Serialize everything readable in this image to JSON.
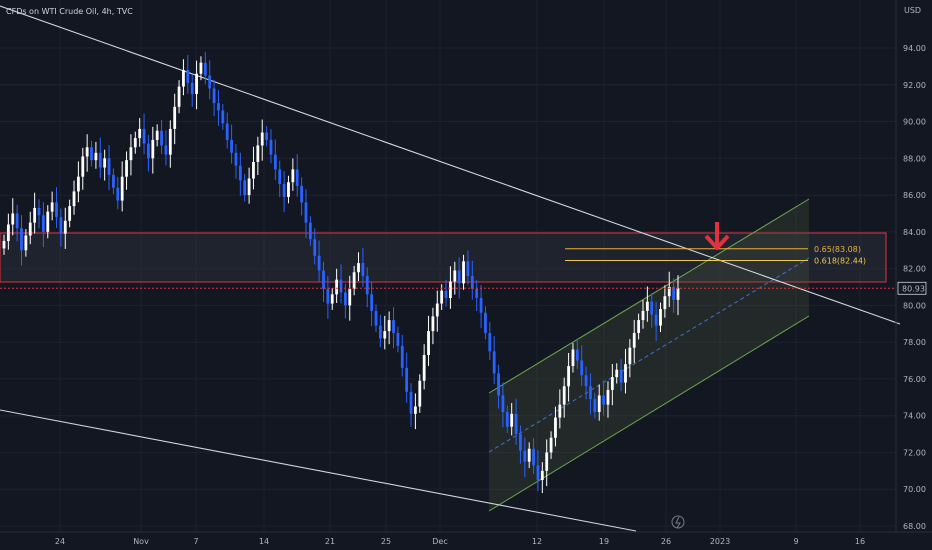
{
  "header": {
    "title": "CFDs on WTI Crude Oil, 4h, TVC"
  },
  "chart_data": {
    "type": "candlestick",
    "title": "CFDs on WTI Crude Oil, 4h, TVC",
    "currency": "USD",
    "ylim": [
      67.5,
      95.5
    ],
    "y_ticks": [
      "94.00",
      "92.00",
      "90.00",
      "88.00",
      "86.00",
      "84.00",
      "82.00",
      "80.00",
      "78.00",
      "76.00",
      "74.00",
      "72.00",
      "70.00",
      "68.00"
    ],
    "x_ticks": [
      "24",
      "Nov",
      "7",
      "14",
      "21",
      "25",
      "Dec",
      "12",
      "19",
      "26",
      "2023",
      "9",
      "16"
    ],
    "last_price": "80.93",
    "fib_levels": [
      {
        "label": "0.65(83.08)",
        "value": 83.08,
        "color": "#e8b03e"
      },
      {
        "label": "0.618(82.44)",
        "value": 82.44,
        "color": "#f0c850"
      }
    ],
    "resistance_zone": {
      "from": 81.3,
      "to": 83.9
    },
    "closes": [
      83.5,
      84.4,
      85.0,
      84.2,
      83.0,
      83.8,
      84.5,
      85.3,
      84.9,
      84.0,
      85.1,
      85.6,
      84.8,
      83.9,
      84.6,
      85.4,
      86.2,
      87.0,
      88.1,
      88.6,
      87.9,
      88.3,
      87.5,
      88.0,
      87.1,
      86.4,
      85.7,
      87.0,
      87.9,
      88.6,
      89.1,
      89.6,
      88.8,
      88.0,
      89.0,
      89.5,
      88.7,
      88.2,
      89.6,
      90.8,
      91.9,
      92.8,
      92.1,
      91.5,
      92.6,
      93.2,
      92.5,
      91.8,
      91.0,
      90.6,
      89.9,
      89.0,
      88.3,
      87.6,
      86.8,
      86.0,
      86.9,
      87.8,
      88.7,
      89.4,
      89.0,
      88.2,
      87.4,
      86.6,
      85.9,
      86.7,
      87.4,
      86.5,
      85.6,
      84.5,
      83.6,
      82.7,
      81.9,
      80.9,
      80.1,
      80.6,
      81.4,
      80.7,
      80.0,
      80.9,
      81.8,
      82.3,
      81.6,
      80.6,
      79.7,
      78.9,
      78.2,
      78.6,
      79.2,
      78.5,
      77.8,
      76.6,
      75.3,
      74.1,
      74.5,
      75.9,
      77.3,
      78.6,
      79.4,
      80.1,
      80.8,
      80.4,
      81.3,
      81.9,
      81.2,
      82.4,
      81.6,
      80.9,
      80.4,
      79.6,
      78.5,
      77.5,
      76.3,
      75.1,
      74.2,
      73.4,
      74.1,
      73.0,
      72.1,
      71.5,
      72.2,
      71.3,
      70.5,
      71.0,
      72.0,
      72.8,
      73.9,
      74.6,
      75.6,
      76.7,
      77.6,
      77.0,
      76.2,
      75.6,
      74.9,
      74.2,
      75.1,
      74.6,
      75.4,
      76.1,
      76.5,
      75.8,
      76.8,
      77.7,
      78.5,
      79.2,
      79.7,
      80.2,
      79.5,
      78.9,
      79.8,
      80.5,
      81.0,
      80.3,
      80.93
    ]
  }
}
